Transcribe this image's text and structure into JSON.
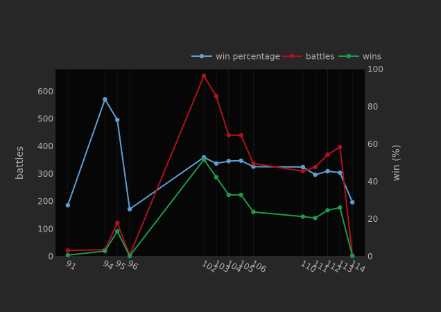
{
  "chart_data": {
    "type": "line",
    "x": [
      91,
      94,
      95,
      96,
      102,
      103,
      104,
      105,
      106,
      110,
      111,
      112,
      113,
      114
    ],
    "x_tick_labels": [
      "91",
      "94",
      "95",
      "96",
      "102",
      "103",
      "104",
      "105",
      "106",
      "110",
      "111",
      "112",
      "113",
      "114"
    ],
    "xlim": [
      90,
      115
    ],
    "ylabel": "battles",
    "ylim": [
      0,
      680
    ],
    "y_ticks": [
      0,
      100,
      200,
      300,
      400,
      500,
      600
    ],
    "y2label": "win (%)",
    "y2lim": [
      0,
      100
    ],
    "y2_ticks": [
      0,
      20,
      40,
      60,
      80,
      100
    ],
    "legend_position": "top-right",
    "grid": false,
    "series": [
      {
        "name": "win percentage",
        "axis": "right",
        "color": "#5f9fd4",
        "values": [
          27.4,
          84,
          73,
          25.3,
          53,
          49.7,
          51,
          51.2,
          48,
          47.8,
          43.7,
          45.6,
          44.8,
          29
        ]
      },
      {
        "name": "battles",
        "axis": "left",
        "color": "#b0121b",
        "values": [
          22,
          25,
          122,
          5,
          656,
          582,
          441,
          441,
          338,
          310,
          325,
          370,
          398,
          5
        ]
      },
      {
        "name": "wins",
        "axis": "left",
        "color": "#1a9c4c",
        "values": [
          5,
          20,
          92,
          2,
          352,
          288,
          224,
          224,
          162,
          145,
          140,
          168,
          178,
          2
        ]
      }
    ]
  }
}
